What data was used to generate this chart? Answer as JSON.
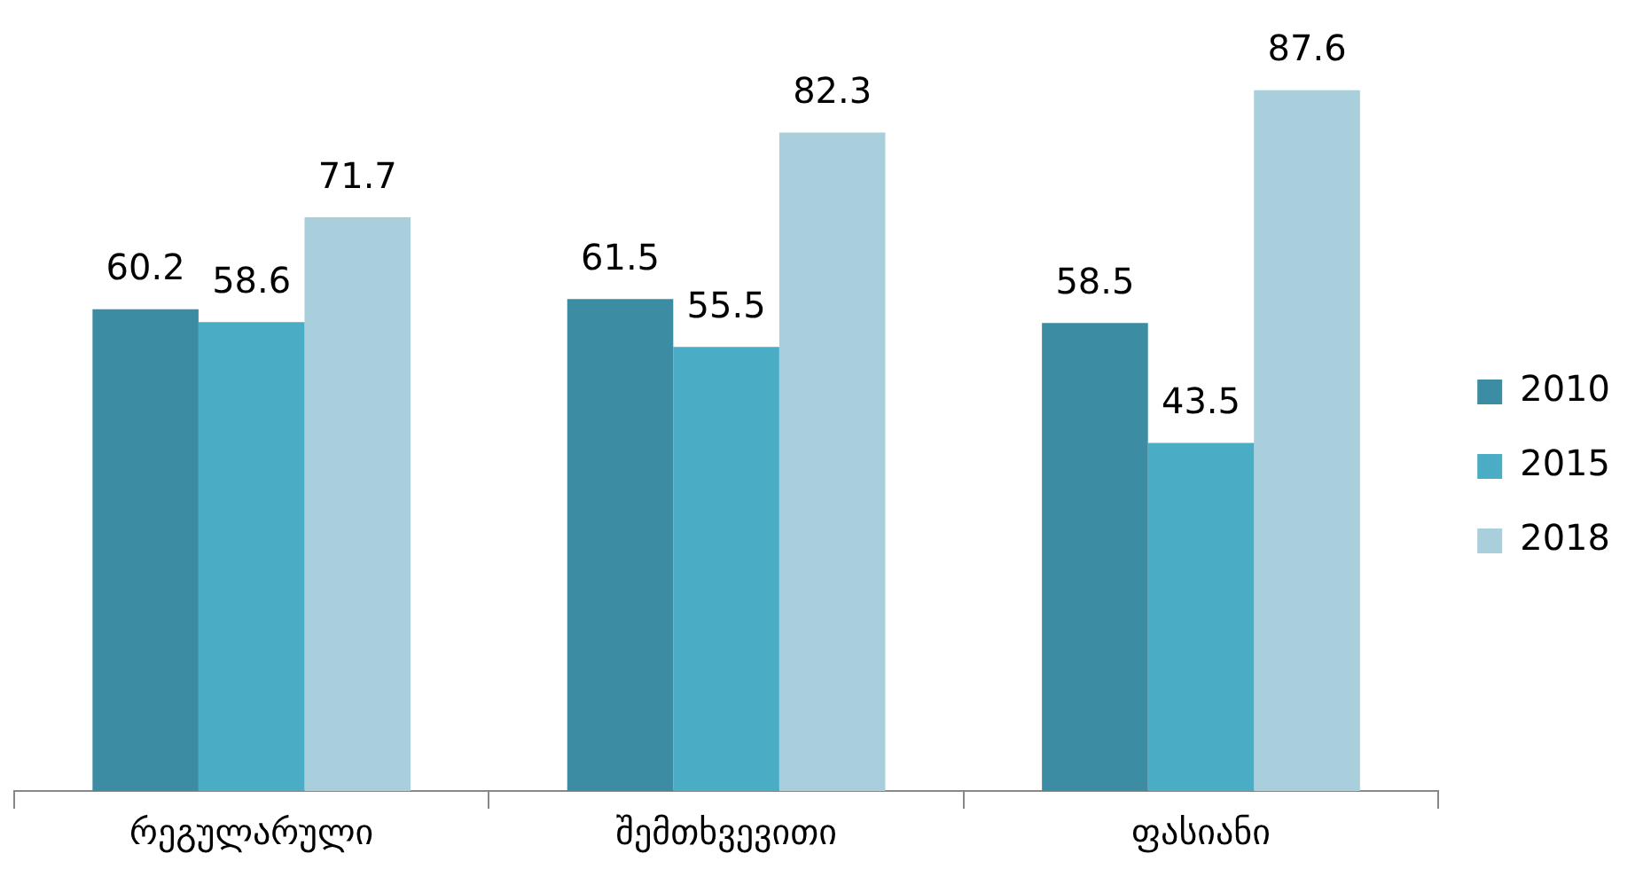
{
  "chart_data": {
    "type": "bar",
    "categories": [
      "რეგულარული",
      "შემთხვევითი",
      "ფასიანი"
    ],
    "series": [
      {
        "name": "2010",
        "color": "#3c8ca4",
        "values": [
          60.2,
          61.5,
          58.5
        ]
      },
      {
        "name": "2015",
        "color": "#4bacc6",
        "values": [
          58.6,
          55.5,
          43.5
        ]
      },
      {
        "name": "2018",
        "color": "#a9cfdc",
        "values": [
          71.7,
          82.3,
          87.6
        ]
      }
    ],
    "data_labels": true,
    "legend": "right",
    "grid": false
  }
}
